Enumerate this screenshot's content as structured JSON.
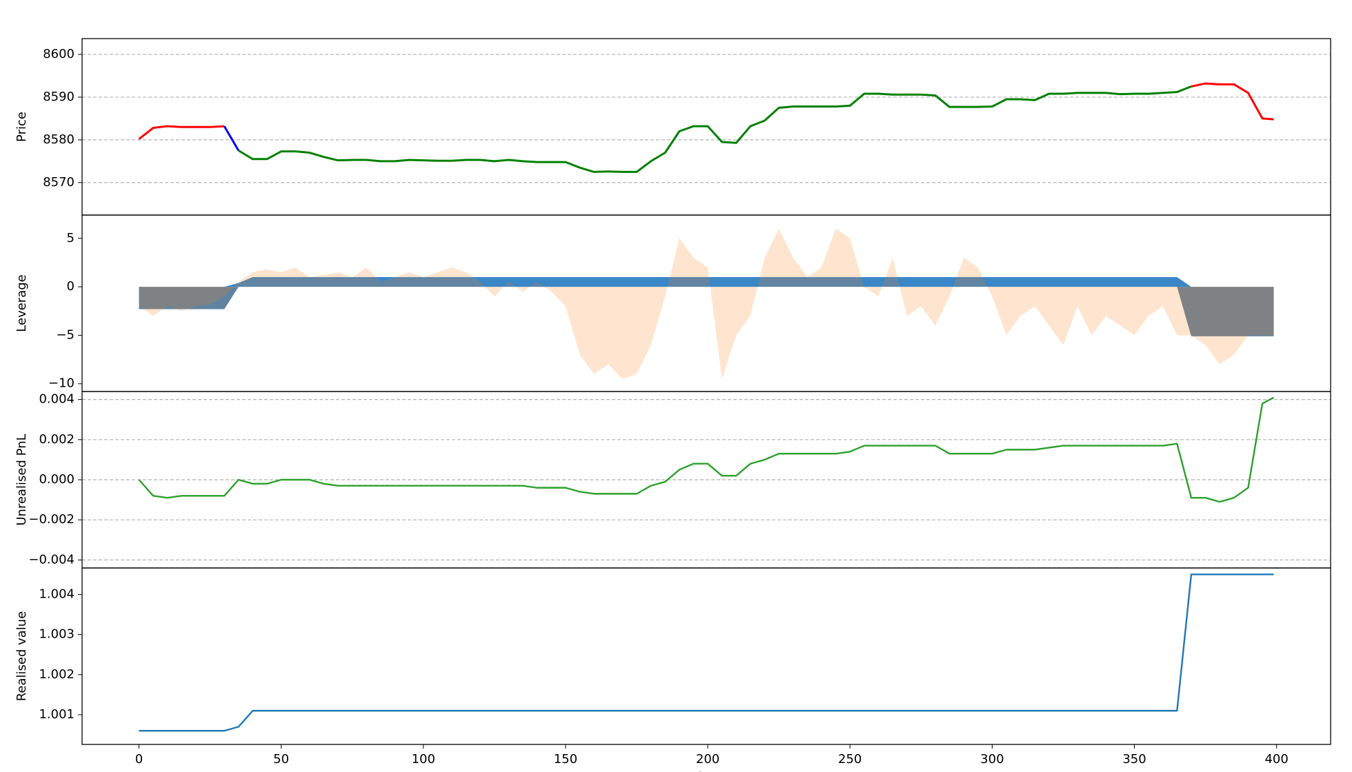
{
  "chart_data": [
    {
      "type": "line",
      "ylabel": "Price",
      "ylabel_color": "#1f77b4",
      "grid": true,
      "line_width": 3,
      "x": [
        0,
        5,
        10,
        15,
        20,
        25,
        30,
        35,
        40,
        45,
        50,
        55,
        60,
        65,
        70,
        75,
        80,
        85,
        90,
        95,
        100,
        105,
        110,
        115,
        120,
        125,
        130,
        135,
        140,
        145,
        150,
        155,
        160,
        165,
        170,
        175,
        180,
        185,
        190,
        195,
        200,
        205,
        210,
        215,
        220,
        225,
        230,
        235,
        240,
        245,
        250,
        255,
        260,
        265,
        270,
        275,
        280,
        285,
        290,
        295,
        300,
        305,
        310,
        315,
        320,
        325,
        330,
        335,
        340,
        345,
        350,
        355,
        360,
        365,
        370,
        375,
        380,
        385,
        390,
        395,
        399
      ],
      "xlim": [
        -20,
        419
      ],
      "ylim": [
        8562.4,
        8603.7
      ],
      "yticks": [
        8570,
        8580,
        8590,
        8600
      ],
      "series": [
        {
          "color": "#ff0000",
          "values": [
            8580.2,
            8582.8,
            8583.2,
            8583,
            8583,
            8583,
            8583.2,
            null,
            null,
            null,
            null,
            null,
            null,
            null,
            null,
            null,
            null,
            null,
            null,
            null,
            null,
            null,
            null,
            null,
            null,
            null,
            null,
            null,
            null,
            null,
            null,
            null,
            null,
            null,
            null,
            null,
            null,
            null,
            null,
            null,
            null,
            null,
            null,
            null,
            null,
            null,
            null,
            null,
            null,
            null,
            null,
            null,
            null,
            null,
            null,
            null,
            null,
            null,
            null,
            null,
            null,
            null,
            null,
            null,
            null,
            null,
            null,
            null,
            null,
            null,
            null,
            null,
            null,
            null,
            8592.5,
            8593.2,
            8593,
            8593,
            8591,
            8585,
            8584.8
          ]
        },
        {
          "color": "#0000ff",
          "values": [
            null,
            null,
            null,
            null,
            null,
            null,
            8583.2,
            8577.5,
            null,
            null,
            null,
            null,
            null,
            null,
            null,
            null,
            null,
            null,
            null,
            null,
            null,
            null,
            null,
            null,
            null,
            null,
            null,
            null,
            null,
            null,
            null,
            null,
            null,
            null,
            null,
            null,
            null,
            null,
            null,
            null,
            null,
            null,
            null,
            null,
            null,
            null,
            null,
            null,
            null,
            null,
            null,
            null,
            null,
            null,
            null,
            null,
            null,
            null,
            null,
            null,
            null,
            null,
            null,
            null,
            null,
            null,
            null,
            null,
            null,
            null,
            null,
            null,
            null,
            null,
            null,
            null,
            null,
            null,
            null,
            null,
            null
          ]
        },
        {
          "color": "#008000",
          "values": [
            null,
            null,
            null,
            null,
            null,
            null,
            null,
            8577.5,
            8575.5,
            8575.5,
            8577.3,
            8577.3,
            8577,
            8576,
            8575.2,
            8575.3,
            8575.3,
            8575,
            8575,
            8575.3,
            8575.2,
            8575.1,
            8575.1,
            8575.3,
            8575.3,
            8575,
            8575.3,
            8575,
            8574.8,
            8574.8,
            8574.8,
            8573.5,
            8572.5,
            8572.6,
            8572.5,
            8572.5,
            8575,
            8577,
            8582,
            8583.2,
            8583.2,
            8579.5,
            8579.3,
            8583.2,
            8584.5,
            8587.5,
            8587.8,
            8587.8,
            8587.8,
            8587.8,
            8588,
            8590.8,
            8590.8,
            8590.6,
            8590.6,
            8590.6,
            8590.4,
            8587.7,
            8587.7,
            8587.7,
            8587.8,
            8589.5,
            8589.5,
            8589.3,
            8590.8,
            8590.8,
            8591,
            8591,
            8591,
            8590.7,
            8590.8,
            8590.8,
            8591,
            8591.2,
            8592.5,
            null,
            null,
            null,
            null,
            null,
            null
          ]
        }
      ]
    },
    {
      "type": "area",
      "ylabel": "Leverage",
      "ylabel_color": "#1f77b4",
      "grid": false,
      "x": [
        0,
        5,
        10,
        15,
        20,
        25,
        30,
        35,
        40,
        45,
        50,
        55,
        60,
        65,
        70,
        75,
        80,
        85,
        90,
        95,
        100,
        105,
        110,
        115,
        120,
        125,
        130,
        135,
        140,
        145,
        150,
        155,
        160,
        165,
        170,
        175,
        180,
        185,
        190,
        195,
        200,
        205,
        210,
        215,
        220,
        225,
        230,
        235,
        240,
        245,
        250,
        255,
        260,
        265,
        270,
        275,
        280,
        285,
        290,
        295,
        300,
        305,
        310,
        315,
        320,
        325,
        330,
        335,
        340,
        345,
        350,
        355,
        360,
        365,
        370,
        375,
        380,
        385,
        390,
        395,
        399
      ],
      "xlim": [
        -20,
        419
      ],
      "ylim": [
        -10.8,
        7.4
      ],
      "yticks": [
        {
          "value": -10,
          "label": "−10"
        },
        {
          "value": -5,
          "label": "−5"
        },
        0,
        5
      ],
      "series": [
        {
          "color": "#5f84a2",
          "alpha": 1,
          "values": [
            -2.3,
            -2.3,
            -2.3,
            -2.3,
            -2.3,
            -2.3,
            -2.3,
            0,
            0,
            0,
            0,
            0,
            0,
            0,
            0,
            0,
            0,
            0,
            0,
            0,
            0,
            0,
            0,
            0,
            0,
            0,
            0,
            0,
            0,
            0,
            0,
            0,
            0,
            0,
            0,
            0,
            0,
            0,
            0,
            0,
            0,
            0,
            0,
            0,
            0,
            0,
            0,
            0,
            0,
            0,
            0,
            0,
            0,
            0,
            0,
            0,
            0,
            0,
            0,
            0,
            0,
            0,
            0,
            0,
            0,
            0,
            0,
            0,
            0,
            0,
            0,
            0,
            0,
            0,
            -5.1,
            -5.1,
            -5.1,
            -5.1,
            -5.1,
            -5.1,
            -5.1
          ]
        },
        {
          "color": "#3a87c7",
          "alpha": 1,
          "values": [
            0,
            0,
            0,
            0,
            0,
            0,
            0,
            0.4,
            1,
            1,
            1,
            1,
            1,
            1,
            1,
            1,
            1,
            1,
            1,
            1,
            1,
            1,
            1,
            1,
            1,
            1,
            1,
            1,
            1,
            1,
            1,
            1,
            1,
            1,
            1,
            1,
            1,
            1,
            1,
            1,
            1,
            1,
            1,
            1,
            1,
            1,
            1,
            1,
            1,
            1,
            1,
            1,
            1,
            1,
            1,
            1,
            1,
            1,
            1,
            1,
            1,
            1,
            1,
            1,
            1,
            1,
            1,
            1,
            1,
            1,
            1,
            1,
            1,
            1,
            0,
            0,
            0,
            0,
            0,
            0,
            0
          ]
        },
        {
          "color": "#ff7f0e",
          "alpha": 0.2,
          "values": [
            -2,
            -3,
            -2,
            -2.5,
            -2,
            -1.8,
            -1,
            0.5,
            1.5,
            1.8,
            1.5,
            2,
            1,
            1.2,
            1.5,
            1,
            2,
            0.5,
            1,
            1.5,
            1,
            1.5,
            2,
            1.5,
            0.5,
            -1,
            0.5,
            -0.5,
            0.5,
            -0.5,
            -2,
            -7,
            -9,
            -8,
            -9.5,
            -9,
            -6,
            -1,
            5,
            3,
            2,
            -9.5,
            -5,
            -3,
            3,
            6,
            3,
            1,
            2,
            6,
            5,
            0,
            -1,
            3,
            -3,
            -2,
            -4,
            -1,
            3,
            2,
            -1,
            -5,
            -3,
            -2,
            -4,
            -6,
            -2,
            -5,
            -3,
            -4,
            -5,
            -3,
            -2,
            -5,
            -5,
            -6,
            -8,
            -7,
            -5,
            -5,
            -5
          ]
        }
      ]
    },
    {
      "type": "line",
      "ylabel": "Unrealised PnL",
      "ylabel_color": "#2ca02c",
      "grid": true,
      "line_width": 2.4,
      "x": [
        0,
        5,
        10,
        15,
        20,
        25,
        30,
        35,
        40,
        45,
        50,
        55,
        60,
        65,
        70,
        75,
        80,
        85,
        90,
        95,
        100,
        105,
        110,
        115,
        120,
        125,
        130,
        135,
        140,
        145,
        150,
        155,
        160,
        165,
        170,
        175,
        180,
        185,
        190,
        195,
        200,
        205,
        210,
        215,
        220,
        225,
        230,
        235,
        240,
        245,
        250,
        255,
        260,
        265,
        270,
        275,
        280,
        285,
        290,
        295,
        300,
        305,
        310,
        315,
        320,
        325,
        330,
        335,
        340,
        345,
        350,
        355,
        360,
        365,
        370,
        375,
        380,
        385,
        390,
        395,
        399
      ],
      "xlim": [
        -20,
        419
      ],
      "ylim": [
        -0.0044,
        0.0044
      ],
      "yticks": [
        {
          "value": -0.004,
          "label": "−0.004"
        },
        {
          "value": -0.002,
          "label": "−0.002"
        },
        {
          "value": 0,
          "label": "0.000"
        },
        {
          "value": 0.002,
          "label": "0.002"
        },
        {
          "value": 0.004,
          "label": "0.004"
        }
      ],
      "series": [
        {
          "color": "#2ca02c",
          "values": [
            0,
            -0.0008,
            -0.0009,
            -0.0008,
            -0.0008,
            -0.0008,
            -0.0008,
            0,
            -0.0002,
            -0.0002,
            0,
            0,
            0,
            -0.0002,
            -0.0003,
            -0.0003,
            -0.0003,
            -0.0003,
            -0.0003,
            -0.0003,
            -0.0003,
            -0.0003,
            -0.0003,
            -0.0003,
            -0.0003,
            -0.0003,
            -0.0003,
            -0.0003,
            -0.0004,
            -0.0004,
            -0.0004,
            -0.0006,
            -0.0007,
            -0.0007,
            -0.0007,
            -0.0007,
            -0.0003,
            -0.0001,
            0.0005,
            0.0008,
            0.0008,
            0.0002,
            0.0002,
            0.0008,
            0.001,
            0.0013,
            0.0013,
            0.0013,
            0.0013,
            0.0013,
            0.0014,
            0.0017,
            0.0017,
            0.0017,
            0.0017,
            0.0017,
            0.0017,
            0.0013,
            0.0013,
            0.0013,
            0.0013,
            0.0015,
            0.0015,
            0.0015,
            0.0016,
            0.0017,
            0.0017,
            0.0017,
            0.0017,
            0.0017,
            0.0017,
            0.0017,
            0.0017,
            0.0018,
            -0.0009,
            -0.0009,
            -0.0011,
            -0.0009,
            -0.0004,
            0.0038,
            0.0041
          ]
        }
      ]
    },
    {
      "type": "line",
      "ylabel": "Realised value",
      "ylabel_color": "#1f77b4",
      "grid": false,
      "line_width": 2.4,
      "xlabel": "Time",
      "x": [
        0,
        5,
        10,
        15,
        20,
        25,
        30,
        35,
        40,
        45,
        50,
        55,
        60,
        65,
        70,
        75,
        80,
        85,
        90,
        95,
        100,
        105,
        110,
        115,
        120,
        125,
        130,
        135,
        140,
        145,
        150,
        155,
        160,
        165,
        170,
        175,
        180,
        185,
        190,
        195,
        200,
        205,
        210,
        215,
        220,
        225,
        230,
        235,
        240,
        245,
        250,
        255,
        260,
        265,
        270,
        275,
        280,
        285,
        290,
        295,
        300,
        305,
        310,
        315,
        320,
        325,
        330,
        335,
        340,
        345,
        350,
        355,
        360,
        365,
        370,
        375,
        380,
        385,
        390,
        395,
        399
      ],
      "xlim": [
        -20,
        419
      ],
      "xticks": [
        0,
        50,
        100,
        150,
        200,
        250,
        300,
        350,
        400
      ],
      "ylim": [
        1.00026,
        1.00466
      ],
      "yticks": [
        1.001,
        1.002,
        1.003,
        1.004
      ],
      "series": [
        {
          "color": "#1f77b4",
          "values": [
            1.0006,
            1.0006,
            1.0006,
            1.0006,
            1.0006,
            1.0006,
            1.0006,
            1.0007,
            1.0011,
            1.0011,
            1.0011,
            1.0011,
            1.0011,
            1.0011,
            1.0011,
            1.0011,
            1.0011,
            1.0011,
            1.0011,
            1.0011,
            1.0011,
            1.0011,
            1.0011,
            1.0011,
            1.0011,
            1.0011,
            1.0011,
            1.0011,
            1.0011,
            1.0011,
            1.0011,
            1.0011,
            1.0011,
            1.0011,
            1.0011,
            1.0011,
            1.0011,
            1.0011,
            1.0011,
            1.0011,
            1.0011,
            1.0011,
            1.0011,
            1.0011,
            1.0011,
            1.0011,
            1.0011,
            1.0011,
            1.0011,
            1.0011,
            1.0011,
            1.0011,
            1.0011,
            1.0011,
            1.0011,
            1.0011,
            1.0011,
            1.0011,
            1.0011,
            1.0011,
            1.0011,
            1.0011,
            1.0011,
            1.0011,
            1.0011,
            1.0011,
            1.0011,
            1.0011,
            1.0011,
            1.0011,
            1.0011,
            1.0011,
            1.0011,
            1.0011,
            1.0045,
            1.0045,
            1.0045,
            1.0045,
            1.0045,
            1.0045,
            1.0045
          ]
        }
      ]
    }
  ]
}
